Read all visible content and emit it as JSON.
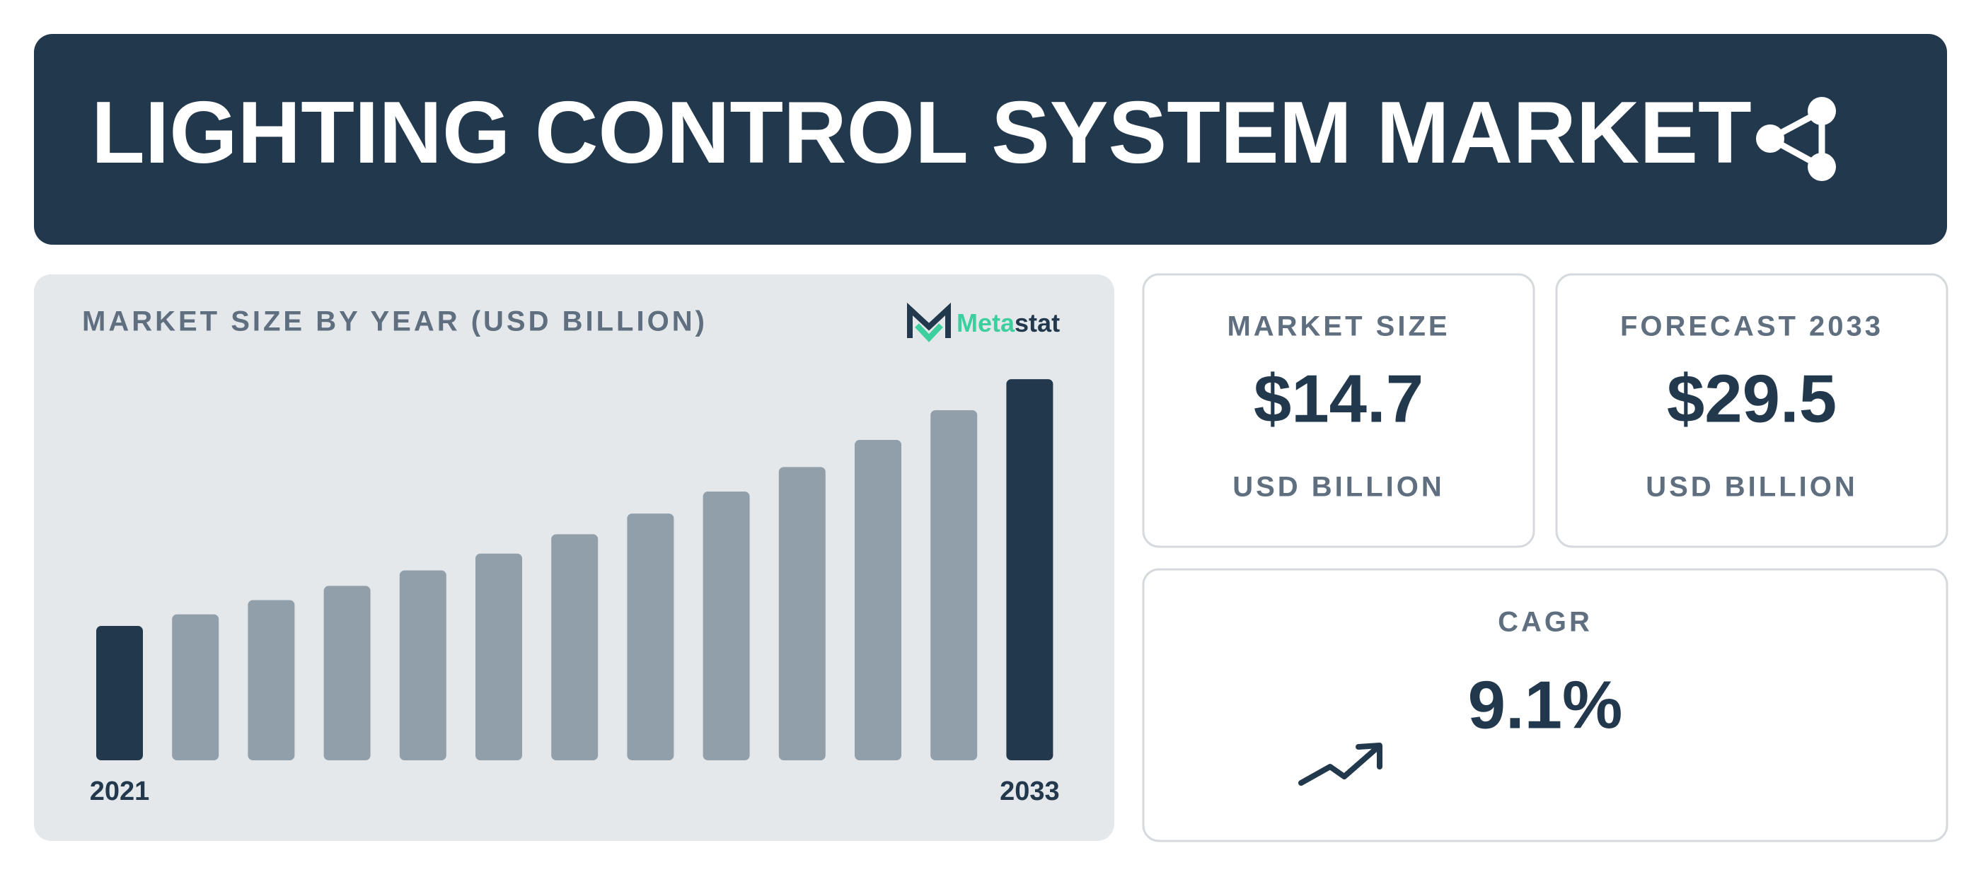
{
  "header": {
    "title": "LIGHTING CONTROL SYSTEM MARKET"
  },
  "brand": [
    "Meta",
    "stat"
  ],
  "chart_data": {
    "type": "bar",
    "title": "MARKET SIZE BY YEAR (USD BILLION)",
    "categories": [
      "2021",
      null,
      null,
      null,
      null,
      null,
      null,
      null,
      null,
      null,
      null,
      null,
      "2033"
    ],
    "values": [
      10.4,
      11.3,
      12.4,
      13.5,
      14.7,
      16.0,
      17.5,
      19.1,
      20.8,
      22.7,
      24.8,
      27.1,
      29.5
    ],
    "color": "#919fab",
    "highlight_color": "#22384c",
    "ylim": [
      0,
      30
    ]
  },
  "cards": [
    {
      "label": "MARKET SIZE",
      "value": "$14.7",
      "unit": "USD BILLION"
    },
    {
      "label": "FORECAST 2033",
      "value": "$29.5",
      "unit": "USD BILLION"
    },
    {
      "label": "CAGR",
      "value": "9.1%"
    }
  ]
}
